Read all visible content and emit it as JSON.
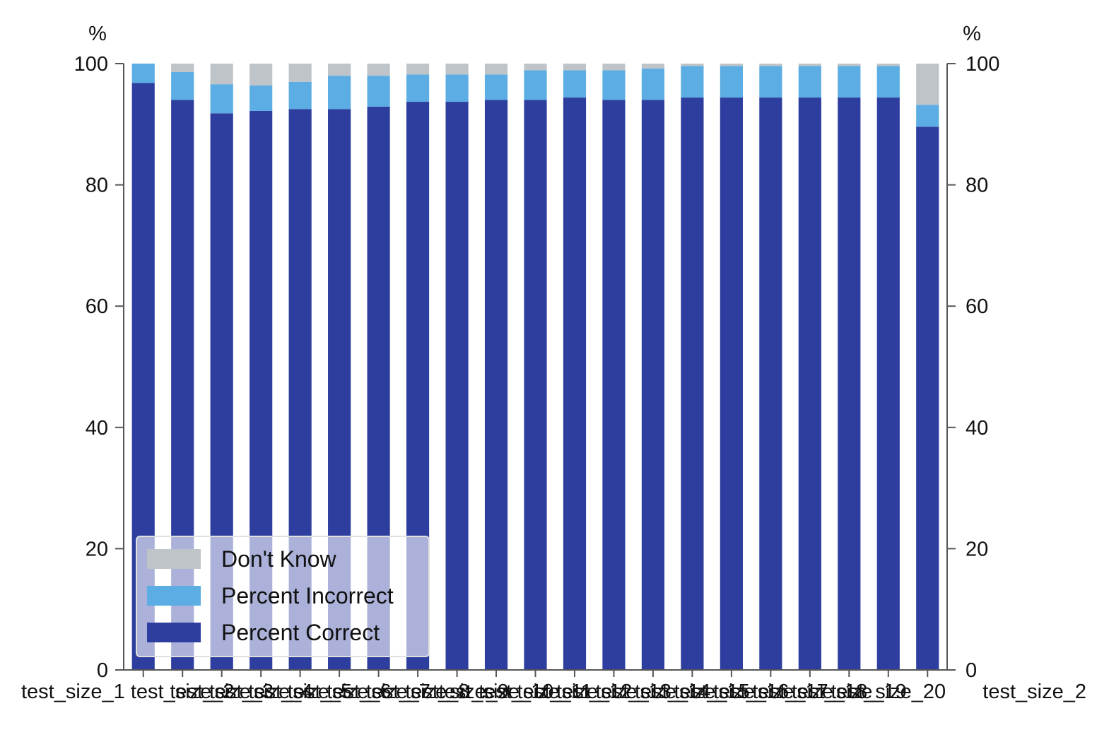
{
  "chart_data": {
    "type": "bar",
    "stacked": true,
    "categories": [
      "test_size_1",
      "test_size_2",
      "test_size_3",
      "test_size_4",
      "test_size_5",
      "test_size_6",
      "test_size_7",
      "test_size_8",
      "test_size_9",
      "test_size_10",
      "test_size_11",
      "test_size_12",
      "test_size_13",
      "test_size_14",
      "test_size_15",
      "test_size_16",
      "test_size_17",
      "test_size_18",
      "test_size_19",
      "test_size_20",
      "test_size_2"
    ],
    "series": [
      {
        "name": "Percent Correct",
        "color": "#2e3e9e",
        "values": [
          96.8,
          94.0,
          91.8,
          92.2,
          92.5,
          92.5,
          92.9,
          93.7,
          93.7,
          94.0,
          94.0,
          94.4,
          94.0,
          94.0,
          94.4,
          94.4,
          94.4,
          94.4,
          94.4,
          94.4,
          89.6
        ]
      },
      {
        "name": "Percent Incorrect",
        "color": "#5badE3",
        "values": [
          3.2,
          4.6,
          4.8,
          4.2,
          4.5,
          5.5,
          5.1,
          4.5,
          4.5,
          4.2,
          4.9,
          4.5,
          4.9,
          5.2,
          5.2,
          5.2,
          5.2,
          5.2,
          5.2,
          5.2,
          3.6
        ]
      },
      {
        "name": "Don't Know",
        "color": "#bfc4c8",
        "values": [
          0.0,
          1.4,
          3.4,
          3.6,
          3.0,
          2.0,
          2.0,
          1.8,
          1.8,
          1.8,
          1.1,
          1.1,
          1.1,
          0.8,
          0.4,
          0.4,
          0.4,
          0.4,
          0.4,
          0.4,
          6.8
        ]
      }
    ],
    "ylim": [
      0,
      100
    ],
    "yticks": [
      "0",
      "20",
      "40",
      "60",
      "80",
      "100"
    ],
    "y_unit_left": "%",
    "y_unit_right": "%",
    "legend_position": "lower-left",
    "legend_order": [
      "Don't Know",
      "Percent Incorrect",
      "Percent Correct"
    ],
    "grid": false
  }
}
